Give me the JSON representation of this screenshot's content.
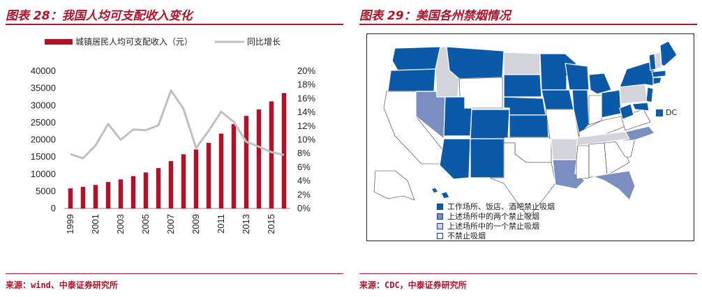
{
  "left": {
    "title": "图表 28：我国人均可支配收入变化",
    "source": "来源：wind、中泰证券研究所"
  },
  "right": {
    "title": "图表 29：美国各州禁烟情况",
    "source": "来源：CDC，中泰证券研究所",
    "dc_label": "DC",
    "legend": [
      {
        "label": "工作场所、饭店、酒吧禁止吸烟",
        "color": "#0b5aa8"
      },
      {
        "label": "上述场所中的两个禁止吸烟",
        "color": "#7a8ec2"
      },
      {
        "label": "上述场所中的一个禁止吸烟",
        "color": "#d3d3dc"
      },
      {
        "label": "不禁止吸烟",
        "color": "#ffffff"
      }
    ]
  },
  "chart_data": {
    "type": "bar",
    "x": [
      1999,
      2000,
      2001,
      2002,
      2003,
      2004,
      2005,
      2006,
      2007,
      2008,
      2009,
      2010,
      2011,
      2012,
      2013,
      2014,
      2015,
      2016
    ],
    "x_tick_labels": [
      "1999",
      "2001",
      "2003",
      "2005",
      "2007",
      "2009",
      "2011",
      "2013",
      "2015"
    ],
    "series": [
      {
        "name": "城镇居民人均可支配收入（元）",
        "type": "bar",
        "axis": "left",
        "color": "#b0122a",
        "values": [
          5854,
          6280,
          6860,
          7703,
          8472,
          9422,
          10493,
          11759,
          13786,
          15781,
          17175,
          19109,
          21810,
          24565,
          26955,
          28844,
          31195,
          33616
        ]
      },
      {
        "name": "同比增长",
        "type": "line",
        "axis": "right",
        "color": "#bfbfbf",
        "values": [
          7.9,
          7.3,
          9.2,
          12.3,
          10.0,
          11.5,
          11.4,
          12.1,
          17.2,
          14.5,
          8.8,
          11.3,
          14.1,
          12.6,
          9.7,
          9.0,
          8.2,
          7.8
        ]
      }
    ],
    "y_left": {
      "ylim": [
        0,
        40000
      ],
      "ticks": [
        "0",
        "5000",
        "10000",
        "15000",
        "20000",
        "25000",
        "30000",
        "35000",
        "40000"
      ]
    },
    "y_right": {
      "ylim": [
        0,
        20
      ],
      "ticks": [
        "0%",
        "2%",
        "4%",
        "6%",
        "8%",
        "10%",
        "12%",
        "14%",
        "16%",
        "18%",
        "20%"
      ]
    },
    "legend_position": "top",
    "grid": false
  }
}
